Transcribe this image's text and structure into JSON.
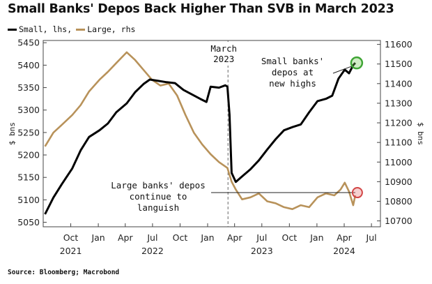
{
  "title": "Small Banks' Depos Back Higher Than SVB in March 2023",
  "legend": [
    {
      "label": "Small, lhs",
      "color": "#000000"
    },
    {
      "label": "Large, rhs",
      "color": "#b8925a"
    }
  ],
  "source": "Source: Bloomberg; Macrobond",
  "chart_data": {
    "type": "line",
    "x_axis": {
      "ticks": [
        {
          "label": "Oct",
          "year": "2021",
          "date": "2021-10-01"
        },
        {
          "label": "Jan",
          "year": "",
          "date": "2022-01-01"
        },
        {
          "label": "Apr",
          "year": "",
          "date": "2022-04-01"
        },
        {
          "label": "Jul",
          "year": "2022",
          "date": "2022-07-01"
        },
        {
          "label": "Oct",
          "year": "",
          "date": "2022-10-01"
        },
        {
          "label": "Jan",
          "year": "",
          "date": "2023-01-01"
        },
        {
          "label": "Apr",
          "year": "",
          "date": "2023-04-01"
        },
        {
          "label": "Jul",
          "year": "2023",
          "date": "2023-07-01"
        },
        {
          "label": "Oct",
          "year": "",
          "date": "2023-10-01"
        },
        {
          "label": "Jan",
          "year": "",
          "date": "2024-01-01"
        },
        {
          "label": "Apr",
          "year": "2024",
          "date": "2024-04-01"
        },
        {
          "label": "Jul",
          "year": "",
          "date": "2024-07-01"
        }
      ],
      "range": [
        "2021-07-01",
        "2024-07-31"
      ]
    },
    "y_left": {
      "label": "$ bns",
      "ticks": [
        5050,
        5100,
        5150,
        5200,
        5250,
        5300,
        5350,
        5400,
        5450
      ],
      "range": [
        5040,
        5455
      ]
    },
    "y_right": {
      "label": "$ bns",
      "ticks": [
        10700,
        10800,
        10900,
        11000,
        11100,
        11200,
        11300,
        11400,
        11500,
        11600
      ],
      "range": [
        10670,
        11620
      ]
    },
    "series": [
      {
        "name": "Small",
        "axis": "left",
        "color": "#000000",
        "points": [
          [
            "2021-07-07",
            5068
          ],
          [
            "2021-08-04",
            5105
          ],
          [
            "2021-09-01",
            5135
          ],
          [
            "2021-10-06",
            5170
          ],
          [
            "2021-11-03",
            5210
          ],
          [
            "2021-12-01",
            5240
          ],
          [
            "2022-01-05",
            5255
          ],
          [
            "2022-02-02",
            5270
          ],
          [
            "2022-03-02",
            5295
          ],
          [
            "2022-04-06",
            5315
          ],
          [
            "2022-05-04",
            5340
          ],
          [
            "2022-06-01",
            5358
          ],
          [
            "2022-06-22",
            5368
          ],
          [
            "2022-07-20",
            5365
          ],
          [
            "2022-08-17",
            5362
          ],
          [
            "2022-09-14",
            5360
          ],
          [
            "2022-10-12",
            5345
          ],
          [
            "2022-11-09",
            5335
          ],
          [
            "2022-12-07",
            5325
          ],
          [
            "2022-12-28",
            5318
          ],
          [
            "2023-01-11",
            5352
          ],
          [
            "2023-02-08",
            5350
          ],
          [
            "2023-03-01",
            5355
          ],
          [
            "2023-03-08",
            5352
          ],
          [
            "2023-03-15",
            5290
          ],
          [
            "2023-03-22",
            5160
          ],
          [
            "2023-04-05",
            5140
          ],
          [
            "2023-04-26",
            5152
          ],
          [
            "2023-05-24",
            5168
          ],
          [
            "2023-06-21",
            5188
          ],
          [
            "2023-07-19",
            5212
          ],
          [
            "2023-08-16",
            5235
          ],
          [
            "2023-09-13",
            5255
          ],
          [
            "2023-10-11",
            5262
          ],
          [
            "2023-11-08",
            5268
          ],
          [
            "2023-12-06",
            5295
          ],
          [
            "2024-01-03",
            5320
          ],
          [
            "2024-01-31",
            5325
          ],
          [
            "2024-02-21",
            5332
          ],
          [
            "2024-03-13",
            5370
          ],
          [
            "2024-04-03",
            5390
          ],
          [
            "2024-04-17",
            5382
          ],
          [
            "2024-05-01",
            5400
          ],
          [
            "2024-05-08",
            5405
          ]
        ]
      },
      {
        "name": "Large",
        "axis": "right",
        "color": "#b8925a",
        "points": [
          [
            "2021-07-07",
            11080
          ],
          [
            "2021-08-04",
            11150
          ],
          [
            "2021-09-01",
            11190
          ],
          [
            "2021-10-06",
            11240
          ],
          [
            "2021-11-03",
            11290
          ],
          [
            "2021-12-01",
            11360
          ],
          [
            "2022-01-05",
            11420
          ],
          [
            "2022-02-02",
            11460
          ],
          [
            "2022-03-02",
            11505
          ],
          [
            "2022-04-06",
            11560
          ],
          [
            "2022-05-04",
            11520
          ],
          [
            "2022-06-01",
            11470
          ],
          [
            "2022-06-29",
            11420
          ],
          [
            "2022-07-27",
            11390
          ],
          [
            "2022-08-24",
            11400
          ],
          [
            "2022-09-21",
            11340
          ],
          [
            "2022-10-19",
            11240
          ],
          [
            "2022-11-16",
            11150
          ],
          [
            "2022-12-14",
            11090
          ],
          [
            "2023-01-11",
            11040
          ],
          [
            "2023-02-08",
            11000
          ],
          [
            "2023-03-08",
            10970
          ],
          [
            "2023-03-22",
            10900
          ],
          [
            "2023-04-05",
            10860
          ],
          [
            "2023-04-26",
            10810
          ],
          [
            "2023-05-24",
            10820
          ],
          [
            "2023-06-21",
            10840
          ],
          [
            "2023-07-19",
            10800
          ],
          [
            "2023-08-16",
            10790
          ],
          [
            "2023-09-13",
            10770
          ],
          [
            "2023-10-11",
            10760
          ],
          [
            "2023-11-08",
            10780
          ],
          [
            "2023-12-06",
            10770
          ],
          [
            "2024-01-03",
            10820
          ],
          [
            "2024-01-31",
            10840
          ],
          [
            "2024-02-28",
            10830
          ],
          [
            "2024-03-20",
            10860
          ],
          [
            "2024-04-03",
            10895
          ],
          [
            "2024-04-17",
            10850
          ],
          [
            "2024-05-01",
            10780
          ],
          [
            "2024-05-08",
            10830
          ]
        ]
      }
    ],
    "annotations": [
      {
        "text": [
          "March",
          "2023"
        ],
        "date": "2023-03-10"
      },
      {
        "text": [
          "Small banks'",
          "depos at",
          "new highs"
        ]
      },
      {
        "text": [
          "Large banks' depos",
          "continue to",
          "languish"
        ]
      }
    ]
  }
}
